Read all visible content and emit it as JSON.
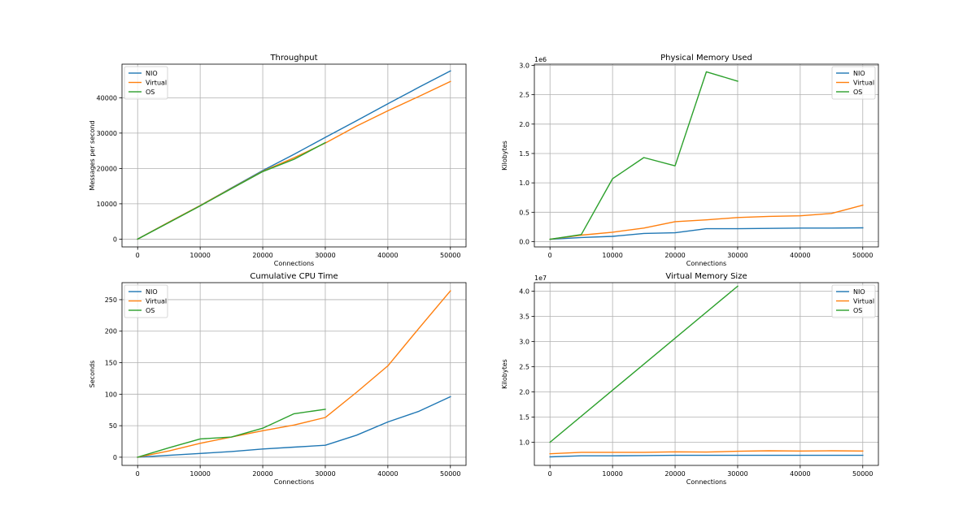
{
  "colors": {
    "nio": "#1f77b4",
    "virtual": "#ff7f0e",
    "os": "#2ca02c"
  },
  "chart_data": [
    {
      "type": "line",
      "title": "Throughput",
      "xlabel": "Connections",
      "ylabel": "Messages per second",
      "offset_label": "",
      "xlim": [
        -2500,
        52500
      ],
      "ylim": [
        -2200,
        49500
      ],
      "xticks": [
        0,
        10000,
        20000,
        30000,
        40000,
        50000
      ],
      "xtick_labels": [
        "0",
        "10000",
        "20000",
        "30000",
        "40000",
        "50000"
      ],
      "yticks": [
        0,
        10000,
        20000,
        30000,
        40000
      ],
      "ytick_labels": [
        "0",
        "10000",
        "20000",
        "30000",
        "40000"
      ],
      "legend_position": "upper left",
      "series": [
        {
          "name": "NIO",
          "color_key": "nio",
          "x": [
            0,
            5000,
            10000,
            15000,
            20000,
            25000,
            30000,
            35000,
            40000,
            45000,
            50000
          ],
          "y": [
            0,
            4800,
            9500,
            14500,
            19400,
            24000,
            28800,
            33500,
            38300,
            43000,
            47600
          ]
        },
        {
          "name": "Virtual",
          "color_key": "virtual",
          "x": [
            0,
            5000,
            10000,
            15000,
            20000,
            25000,
            30000,
            35000,
            40000,
            45000,
            50000
          ],
          "y": [
            0,
            4800,
            9500,
            14400,
            19200,
            23000,
            27200,
            32000,
            36300,
            40400,
            44600
          ]
        },
        {
          "name": "OS",
          "color_key": "os",
          "x": [
            0,
            5000,
            10000,
            15000,
            20000,
            25000,
            30000
          ],
          "y": [
            0,
            4700,
            9400,
            14300,
            19100,
            22600,
            27300
          ]
        }
      ]
    },
    {
      "type": "line",
      "title": "Physical Memory Used",
      "xlabel": "Connections",
      "ylabel": "Kilobytes",
      "offset_label": "1e6",
      "xlim": [
        -2500,
        52500
      ],
      "ylim": [
        -0.09,
        3.02
      ],
      "xticks": [
        0,
        10000,
        20000,
        30000,
        40000,
        50000
      ],
      "xtick_labels": [
        "0",
        "10000",
        "20000",
        "30000",
        "40000",
        "50000"
      ],
      "yticks": [
        0,
        0.5,
        1.0,
        1.5,
        2.0,
        2.5,
        3.0
      ],
      "ytick_labels": [
        "0.0",
        "0.5",
        "1.0",
        "1.5",
        "2.0",
        "2.5",
        "3.0"
      ],
      "legend_position": "upper right",
      "series": [
        {
          "name": "NIO",
          "color_key": "nio",
          "x": [
            0,
            5000,
            10000,
            15000,
            20000,
            25000,
            30000,
            35000,
            40000,
            45000,
            50000
          ],
          "y": [
            0.04,
            0.07,
            0.09,
            0.14,
            0.15,
            0.22,
            0.22,
            0.225,
            0.23,
            0.23,
            0.235
          ]
        },
        {
          "name": "Virtual",
          "color_key": "virtual",
          "x": [
            0,
            5000,
            10000,
            15000,
            20000,
            25000,
            30000,
            35000,
            40000,
            45000,
            50000
          ],
          "y": [
            0.04,
            0.11,
            0.16,
            0.23,
            0.34,
            0.37,
            0.41,
            0.43,
            0.44,
            0.48,
            0.62
          ]
        },
        {
          "name": "OS",
          "color_key": "os",
          "x": [
            0,
            5000,
            10000,
            15000,
            20000,
            25000,
            30000
          ],
          "y": [
            0.04,
            0.12,
            1.07,
            1.43,
            1.29,
            2.89,
            2.73
          ]
        }
      ]
    },
    {
      "type": "line",
      "title": "Cumulative CPU Time",
      "xlabel": "Connections",
      "ylabel": "Seconds",
      "offset_label": "",
      "xlim": [
        -2500,
        52500
      ],
      "ylim": [
        -13,
        277
      ],
      "xticks": [
        0,
        10000,
        20000,
        30000,
        40000,
        50000
      ],
      "xtick_labels": [
        "0",
        "10000",
        "20000",
        "30000",
        "40000",
        "50000"
      ],
      "yticks": [
        0,
        50,
        100,
        150,
        200,
        250
      ],
      "ytick_labels": [
        "0",
        "50",
        "100",
        "150",
        "200",
        "250"
      ],
      "legend_position": "upper left",
      "series": [
        {
          "name": "NIO",
          "color_key": "nio",
          "x": [
            0,
            5000,
            10000,
            15000,
            20000,
            25000,
            30000,
            35000,
            40000,
            45000,
            50000
          ],
          "y": [
            0,
            3,
            6,
            9,
            13,
            16,
            19,
            35,
            56,
            73,
            96
          ]
        },
        {
          "name": "Virtual",
          "color_key": "virtual",
          "x": [
            0,
            5000,
            10000,
            15000,
            20000,
            25000,
            30000,
            35000,
            40000,
            45000,
            50000
          ],
          "y": [
            0,
            10,
            22,
            32,
            42,
            51,
            63,
            103,
            145,
            205,
            264
          ]
        },
        {
          "name": "OS",
          "color_key": "os",
          "x": [
            0,
            5000,
            10000,
            15000,
            20000,
            25000,
            30000
          ],
          "y": [
            0,
            15,
            29,
            32,
            46,
            69,
            76
          ]
        }
      ]
    },
    {
      "type": "line",
      "title": "Virtual Memory Size",
      "xlabel": "Connections",
      "ylabel": "Kilobytes",
      "offset_label": "1e7",
      "xlim": [
        -2500,
        52500
      ],
      "ylim": [
        0.54,
        4.17
      ],
      "xticks": [
        0,
        10000,
        20000,
        30000,
        40000,
        50000
      ],
      "xtick_labels": [
        "0",
        "10000",
        "20000",
        "30000",
        "40000",
        "50000"
      ],
      "yticks": [
        1.0,
        1.5,
        2.0,
        2.5,
        3.0,
        3.5,
        4.0
      ],
      "ytick_labels": [
        "1.0",
        "1.5",
        "2.0",
        "2.5",
        "3.0",
        "3.5",
        "4.0"
      ],
      "legend_position": "upper right",
      "series": [
        {
          "name": "NIO",
          "color_key": "nio",
          "x": [
            0,
            5000,
            10000,
            15000,
            20000,
            25000,
            30000,
            35000,
            40000,
            45000,
            50000
          ],
          "y": [
            0.71,
            0.73,
            0.73,
            0.735,
            0.74,
            0.74,
            0.74,
            0.74,
            0.74,
            0.74,
            0.74
          ]
        },
        {
          "name": "Virtual",
          "color_key": "virtual",
          "x": [
            0,
            5000,
            10000,
            15000,
            20000,
            25000,
            30000,
            35000,
            40000,
            45000,
            50000
          ],
          "y": [
            0.77,
            0.8,
            0.8,
            0.8,
            0.81,
            0.805,
            0.82,
            0.83,
            0.825,
            0.83,
            0.825
          ]
        },
        {
          "name": "OS",
          "color_key": "os",
          "x": [
            0,
            30000
          ],
          "y": [
            1.0,
            4.1
          ]
        }
      ]
    }
  ]
}
